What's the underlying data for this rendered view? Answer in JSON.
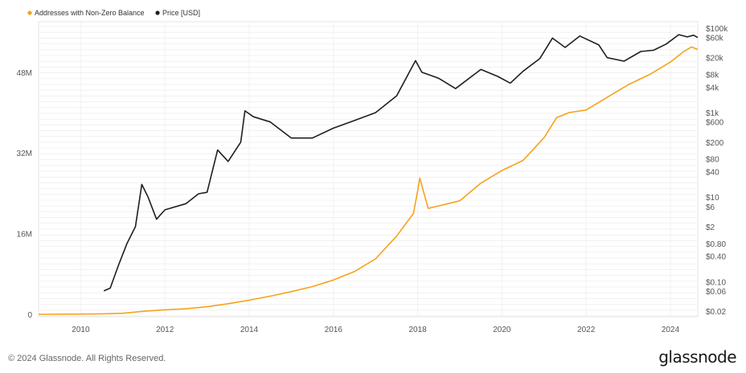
{
  "footer": {
    "copyright": "© 2024 Glassnode. All Rights Reserved.",
    "brand": "glassnode"
  },
  "chart_data": {
    "type": "line",
    "legend": [
      {
        "name": "Addresses with Non-Zero Balance",
        "color": "#f7a21b"
      },
      {
        "name": "Price [USD]",
        "color": "#1f1f1f"
      }
    ],
    "x_ticks": [
      "2010",
      "2012",
      "2014",
      "2016",
      "2018",
      "2020",
      "2022",
      "2024"
    ],
    "xlim": [
      2009.0,
      2024.65
    ],
    "left_axis": {
      "ticks": [
        {
          "v": 0,
          "label": "0"
        },
        {
          "v": 16,
          "label": "16M"
        },
        {
          "v": 32,
          "label": "32M"
        },
        {
          "v": 48,
          "label": "48M"
        }
      ],
      "ylim": [
        0,
        58
      ]
    },
    "right_axis": {
      "scale": "log",
      "ylim": [
        0.02,
        100000
      ],
      "ticks": [
        {
          "v": 100000,
          "label": "$100k"
        },
        {
          "v": 60000,
          "label": "$60k"
        },
        {
          "v": 20000,
          "label": "$20k"
        },
        {
          "v": 8000,
          "label": "$8k"
        },
        {
          "v": 4000,
          "label": "$4k"
        },
        {
          "v": 1000,
          "label": "$1k"
        },
        {
          "v": 600,
          "label": "$600"
        },
        {
          "v": 200,
          "label": "$200"
        },
        {
          "v": 80,
          "label": "$80"
        },
        {
          "v": 40,
          "label": "$40"
        },
        {
          "v": 10,
          "label": "$10"
        },
        {
          "v": 6,
          "label": "$6"
        },
        {
          "v": 2,
          "label": "$2"
        },
        {
          "v": 0.8,
          "label": "$0.80"
        },
        {
          "v": 0.4,
          "label": "$0.40"
        },
        {
          "v": 0.1,
          "label": "$0.10"
        },
        {
          "v": 0.06,
          "label": "$0.06"
        },
        {
          "v": 0.02,
          "label": "$0.02"
        }
      ]
    },
    "grid": true,
    "series": [
      {
        "name": "Addresses with Non-Zero Balance",
        "axis": "left",
        "color": "#f7a21b",
        "points": [
          [
            2009.0,
            0
          ],
          [
            2010.0,
            0.05
          ],
          [
            2010.5,
            0.1
          ],
          [
            2011.0,
            0.2
          ],
          [
            2011.5,
            0.6
          ],
          [
            2012.0,
            0.9
          ],
          [
            2012.5,
            1.1
          ],
          [
            2013.0,
            1.5
          ],
          [
            2013.5,
            2.1
          ],
          [
            2014.0,
            2.8
          ],
          [
            2014.5,
            3.6
          ],
          [
            2015.0,
            4.5
          ],
          [
            2015.5,
            5.5
          ],
          [
            2016.0,
            6.8
          ],
          [
            2016.5,
            8.5
          ],
          [
            2017.0,
            11.0
          ],
          [
            2017.5,
            15.5
          ],
          [
            2017.9,
            20.0
          ],
          [
            2018.0,
            24.5
          ],
          [
            2018.05,
            27.0
          ],
          [
            2018.15,
            24.0
          ],
          [
            2018.25,
            21.0
          ],
          [
            2018.5,
            21.5
          ],
          [
            2019.0,
            22.5
          ],
          [
            2019.5,
            26.0
          ],
          [
            2020.0,
            28.5
          ],
          [
            2020.5,
            30.5
          ],
          [
            2021.0,
            35.0
          ],
          [
            2021.3,
            39.0
          ],
          [
            2021.6,
            40.0
          ],
          [
            2022.0,
            40.5
          ],
          [
            2022.5,
            43.0
          ],
          [
            2023.0,
            45.5
          ],
          [
            2023.5,
            47.5
          ],
          [
            2024.0,
            50.0
          ],
          [
            2024.3,
            52.0
          ],
          [
            2024.5,
            53.0
          ],
          [
            2024.65,
            52.5
          ]
        ]
      },
      {
        "name": "Price [USD]",
        "axis": "right",
        "color": "#1f1f1f",
        "points": [
          [
            2010.55,
            0.06
          ],
          [
            2010.7,
            0.07
          ],
          [
            2010.9,
            0.25
          ],
          [
            2011.1,
            0.8
          ],
          [
            2011.3,
            2
          ],
          [
            2011.45,
            20
          ],
          [
            2011.6,
            10
          ],
          [
            2011.8,
            3
          ],
          [
            2012.0,
            5
          ],
          [
            2012.5,
            7
          ],
          [
            2012.8,
            12
          ],
          [
            2013.0,
            13
          ],
          [
            2013.25,
            130
          ],
          [
            2013.5,
            70
          ],
          [
            2013.8,
            200
          ],
          [
            2013.9,
            1100
          ],
          [
            2014.1,
            800
          ],
          [
            2014.5,
            600
          ],
          [
            2015.0,
            250
          ],
          [
            2015.5,
            250
          ],
          [
            2016.0,
            430
          ],
          [
            2016.5,
            650
          ],
          [
            2017.0,
            1000
          ],
          [
            2017.5,
            2500
          ],
          [
            2017.95,
            17000
          ],
          [
            2018.1,
            9000
          ],
          [
            2018.5,
            6500
          ],
          [
            2018.9,
            3700
          ],
          [
            2019.5,
            10500
          ],
          [
            2019.9,
            7200
          ],
          [
            2020.2,
            5000
          ],
          [
            2020.5,
            9500
          ],
          [
            2020.9,
            19000
          ],
          [
            2021.2,
            58000
          ],
          [
            2021.5,
            35000
          ],
          [
            2021.85,
            65000
          ],
          [
            2022.3,
            40000
          ],
          [
            2022.5,
            20000
          ],
          [
            2022.9,
            16500
          ],
          [
            2023.3,
            28000
          ],
          [
            2023.6,
            30000
          ],
          [
            2023.9,
            42000
          ],
          [
            2024.2,
            70000
          ],
          [
            2024.4,
            62000
          ],
          [
            2024.55,
            68000
          ],
          [
            2024.65,
            60000
          ]
        ]
      }
    ]
  }
}
